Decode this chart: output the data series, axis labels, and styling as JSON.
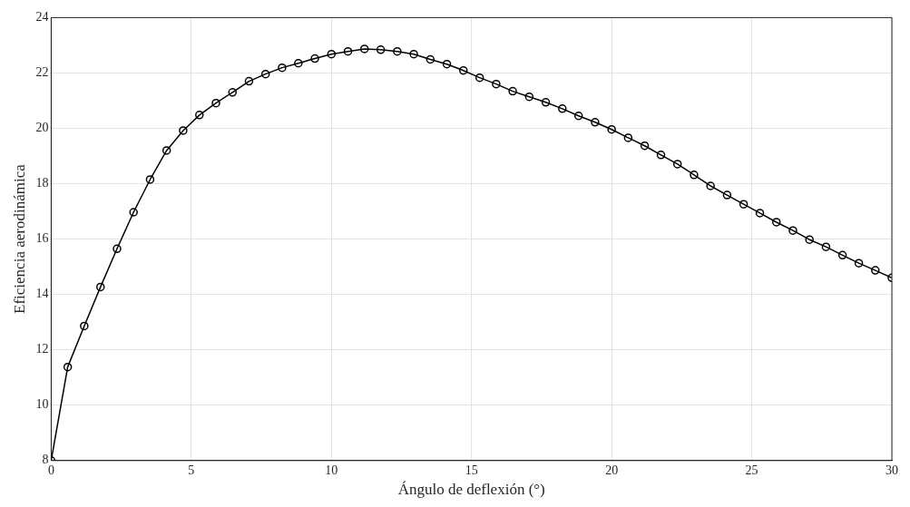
{
  "chart_data": {
    "type": "line",
    "xlabel": "Ángulo de deflexión (°)",
    "ylabel": "Eficiencia aerodinámica",
    "x": [
      0,
      0.59,
      1.18,
      1.76,
      2.35,
      2.94,
      3.53,
      4.12,
      4.71,
      5.29,
      5.88,
      6.47,
      7.06,
      7.65,
      8.24,
      8.82,
      9.41,
      10,
      10.59,
      11.18,
      11.76,
      12.35,
      12.94,
      13.53,
      14.12,
      14.71,
      15.29,
      15.88,
      16.47,
      17.06,
      17.65,
      18.24,
      18.82,
      19.41,
      20,
      20.59,
      21.18,
      21.76,
      22.35,
      22.94,
      23.53,
      24.12,
      24.71,
      25.29,
      25.88,
      26.47,
      27.06,
      27.65,
      28.24,
      28.82,
      29.41,
      30
    ],
    "series": [
      {
        "color": "#000000",
        "values": [
          8.0,
          11.38,
          12.86,
          14.27,
          15.65,
          16.97,
          18.15,
          19.2,
          19.92,
          20.48,
          20.91,
          21.3,
          21.7,
          21.96,
          22.19,
          22.35,
          22.52,
          22.68,
          22.78,
          22.87,
          22.84,
          22.78,
          22.68,
          22.49,
          22.32,
          22.09,
          21.83,
          21.6,
          21.34,
          21.14,
          20.94,
          20.71,
          20.45,
          20.22,
          19.96,
          19.66,
          19.37,
          19.04,
          18.71,
          18.32,
          17.92,
          17.59,
          17.26,
          16.94,
          16.61,
          16.31,
          15.98,
          15.72,
          15.42,
          15.13,
          14.87,
          14.6
        ]
      }
    ],
    "xlim": [
      0,
      30
    ],
    "xticks": [
      0,
      5,
      10,
      15,
      20,
      25,
      30
    ],
    "ylim": [
      8,
      24
    ],
    "yticks": [
      8,
      10,
      12,
      14,
      16,
      18,
      20,
      22,
      24
    ],
    "grid": true,
    "legend": false,
    "marker": "circle",
    "line_style": "solid"
  }
}
